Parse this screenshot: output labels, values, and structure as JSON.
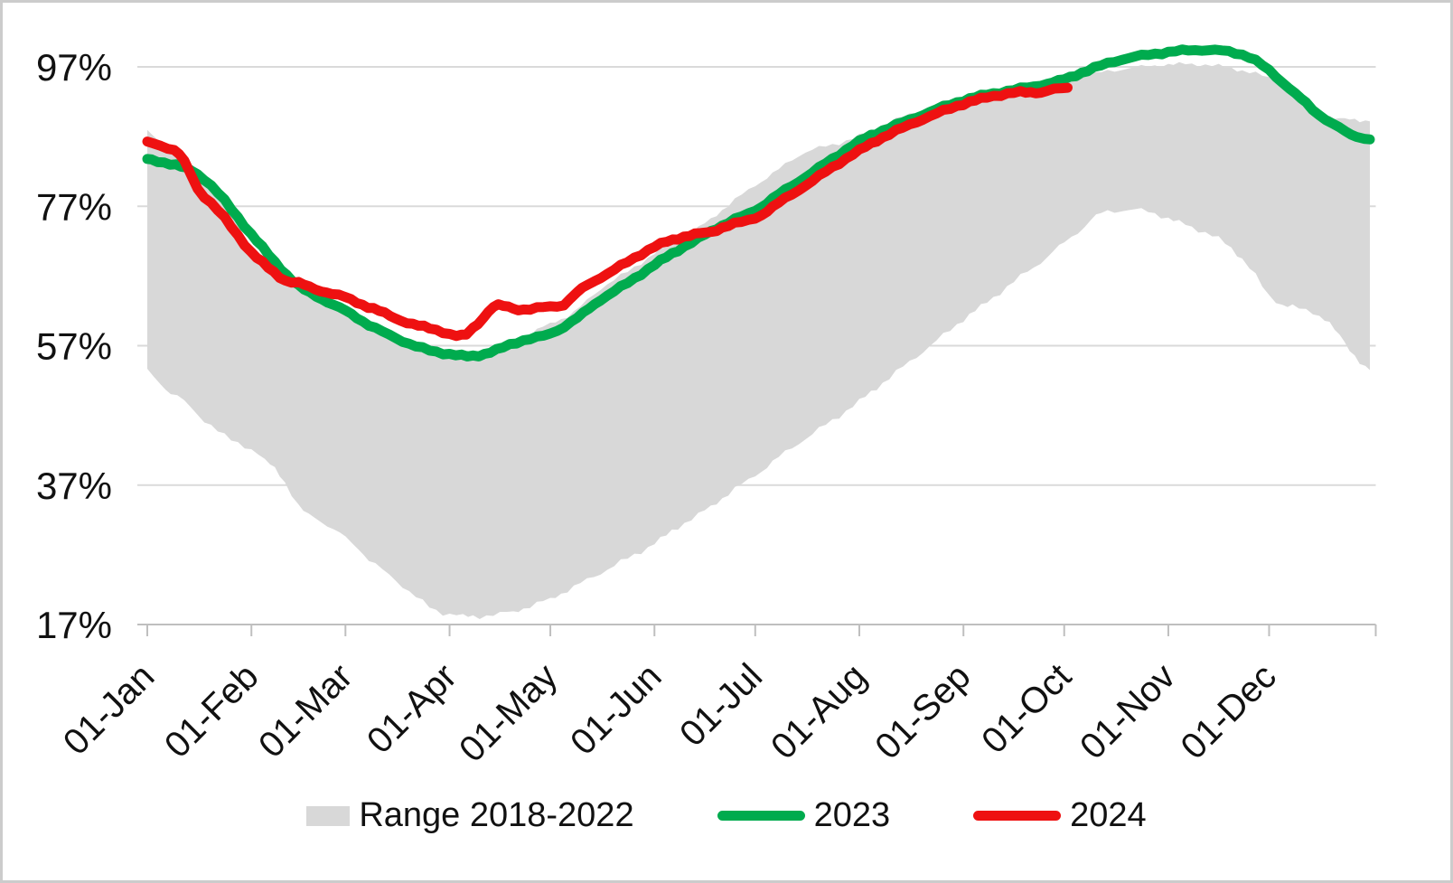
{
  "chart_data": {
    "type": "line",
    "title": "",
    "unit": "percent",
    "grid": true,
    "legend_position": "bottom",
    "x_axis": {
      "tick_labels": [
        "01-Jan",
        "01-Feb",
        "01-Mar",
        "01-Apr",
        "01-May",
        "01-Jun",
        "01-Jul",
        "01-Aug",
        "01-Sep",
        "01-Oct",
        "01-Nov",
        "01-Dec"
      ],
      "tick_days": [
        0,
        31,
        59,
        90,
        120,
        151,
        181,
        212,
        243,
        273,
        304,
        334
      ],
      "range_days": [
        0,
        365
      ]
    },
    "y_axis": {
      "tick_labels": [
        "17%",
        "37%",
        "57%",
        "77%",
        "97%"
      ],
      "ticks": [
        17,
        37,
        57,
        77,
        97
      ],
      "min": 17,
      "max": 100.5
    },
    "band": {
      "name": "Range 2018-2022",
      "color": "#D8D8D8",
      "points": [
        [
          0,
          53.5,
          87.8
        ],
        [
          4,
          51.5,
          86.2
        ],
        [
          7,
          50.3,
          85.3
        ],
        [
          11,
          49.0,
          83.3
        ],
        [
          15,
          47.1,
          82.1
        ],
        [
          19,
          45.6,
          79.8
        ],
        [
          23,
          44.0,
          77.3
        ],
        [
          27,
          43.1,
          74.3
        ],
        [
          31,
          42.1,
          71.4
        ],
        [
          35,
          40.5,
          69.5
        ],
        [
          38,
          39.4,
          67.8
        ],
        [
          41,
          37.5,
          66.3
        ],
        [
          45,
          33.9,
          64.9
        ],
        [
          48,
          32.8,
          63.9
        ],
        [
          52,
          31.7,
          62.9
        ],
        [
          59,
          29.5,
          61.4
        ],
        [
          63,
          27.8,
          60.2
        ],
        [
          66,
          26.4,
          59.3
        ],
        [
          70,
          24.8,
          58.3
        ],
        [
          74,
          23.3,
          57.5
        ],
        [
          78,
          21.8,
          56.8
        ],
        [
          82,
          20.2,
          56.2
        ],
        [
          86,
          19.0,
          55.8
        ],
        [
          90,
          18.5,
          55.3
        ],
        [
          94,
          18.2,
          55.1
        ],
        [
          97,
          18.1,
          55.0
        ],
        [
          101,
          18.3,
          55.2
        ],
        [
          105,
          18.5,
          55.9
        ],
        [
          109,
          18.9,
          57.2
        ],
        [
          112,
          19.3,
          58.0
        ],
        [
          116,
          20.0,
          59.2
        ],
        [
          120,
          20.7,
          60.2
        ],
        [
          127,
          22.4,
          61.8
        ],
        [
          135,
          24.4,
          65.2
        ],
        [
          143,
          26.5,
          67.6
        ],
        [
          151,
          28.6,
          70.2
        ],
        [
          158,
          31.0,
          72.0
        ],
        [
          166,
          33.3,
          74.5
        ],
        [
          173,
          35.8,
          77.2
        ],
        [
          181,
          38.4,
          80.0
        ],
        [
          188,
          41.0,
          82.3
        ],
        [
          196,
          43.7,
          84.8
        ],
        [
          204,
          46.3,
          85.8
        ],
        [
          212,
          49.0,
          87.1
        ],
        [
          219,
          51.7,
          88.6
        ],
        [
          227,
          54.7,
          90.2
        ],
        [
          235,
          57.7,
          91.6
        ],
        [
          243,
          60.8,
          92.8
        ],
        [
          250,
          63.2,
          93.3
        ],
        [
          258,
          66.2,
          93.6
        ],
        [
          266,
          69.0,
          94.2
        ],
        [
          273,
          71.8,
          95.0
        ],
        [
          277,
          73.3,
          95.5
        ],
        [
          281,
          75.0,
          95.9
        ],
        [
          284,
          76.0,
          96.2
        ],
        [
          288,
          76.3,
          96.5
        ],
        [
          292,
          76.5,
          96.8
        ],
        [
          296,
          76.4,
          97.0
        ],
        [
          300,
          76.0,
          97.2
        ],
        [
          304,
          75.2,
          97.3
        ],
        [
          311,
          74.0,
          97.4
        ],
        [
          319,
          72.3,
          97.1
        ],
        [
          326,
          69.5,
          96.5
        ],
        [
          330,
          67.0,
          96.0
        ],
        [
          334,
          64.1,
          95.4
        ],
        [
          338,
          63.0,
          94.6
        ],
        [
          341,
          62.6,
          93.8
        ],
        [
          345,
          62.0,
          92.2
        ],
        [
          349,
          61.4,
          90.6
        ],
        [
          352,
          60.2,
          89.8
        ],
        [
          355,
          58.3,
          89.4
        ],
        [
          358,
          56.4,
          89.6
        ],
        [
          361,
          54.8,
          89.4
        ],
        [
          364,
          53.5,
          89.2
        ]
      ]
    },
    "series": [
      {
        "name": "2023",
        "color": "#00AB4E",
        "points": [
          [
            0,
            83.7
          ],
          [
            5,
            83.3
          ],
          [
            10,
            82.7
          ],
          [
            13,
            82.1
          ],
          [
            15,
            81.6
          ],
          [
            19,
            80.0
          ],
          [
            23,
            77.8
          ],
          [
            27,
            75.4
          ],
          [
            31,
            73.0
          ],
          [
            38,
            69.0
          ],
          [
            45,
            65.6
          ],
          [
            52,
            63.7
          ],
          [
            59,
            62.0
          ],
          [
            66,
            60.0
          ],
          [
            74,
            58.1
          ],
          [
            82,
            56.6
          ],
          [
            90,
            55.8
          ],
          [
            97,
            55.5
          ],
          [
            104,
            56.4
          ],
          [
            112,
            57.8
          ],
          [
            120,
            58.7
          ],
          [
            128,
            61.0
          ],
          [
            135,
            63.6
          ],
          [
            143,
            66.0
          ],
          [
            151,
            68.6
          ],
          [
            158,
            70.7
          ],
          [
            166,
            72.9
          ],
          [
            173,
            74.7
          ],
          [
            181,
            76.4
          ],
          [
            188,
            78.7
          ],
          [
            196,
            81.2
          ],
          [
            204,
            83.8
          ],
          [
            212,
            86.3
          ],
          [
            219,
            87.9
          ],
          [
            227,
            89.4
          ],
          [
            235,
            90.9
          ],
          [
            243,
            92.2
          ],
          [
            250,
            93.0
          ],
          [
            258,
            93.7
          ],
          [
            266,
            94.4
          ],
          [
            273,
            95.2
          ],
          [
            280,
            96.5
          ],
          [
            288,
            97.8
          ],
          [
            296,
            98.6
          ],
          [
            304,
            99.1
          ],
          [
            310,
            99.4
          ],
          [
            316,
            99.4
          ],
          [
            322,
            99.2
          ],
          [
            328,
            98.4
          ],
          [
            334,
            96.5
          ],
          [
            340,
            93.9
          ],
          [
            345,
            91.8
          ],
          [
            349,
            90.1
          ],
          [
            355,
            88.2
          ],
          [
            360,
            87.0
          ],
          [
            364,
            86.6
          ]
        ]
      },
      {
        "name": "2024",
        "color": "#EE1111",
        "points": [
          [
            0,
            86.2
          ],
          [
            4,
            85.7
          ],
          [
            8,
            85.0
          ],
          [
            11,
            83.5
          ],
          [
            15,
            79.5
          ],
          [
            19,
            77.5
          ],
          [
            23,
            75.3
          ],
          [
            27,
            72.8
          ],
          [
            31,
            70.4
          ],
          [
            36,
            68.2
          ],
          [
            41,
            66.4
          ],
          [
            45,
            66.0
          ],
          [
            50,
            65.1
          ],
          [
            55,
            64.5
          ],
          [
            59,
            63.9
          ],
          [
            64,
            62.9
          ],
          [
            69,
            62.0
          ],
          [
            74,
            60.9
          ],
          [
            79,
            60.1
          ],
          [
            84,
            59.5
          ],
          [
            88,
            59.0
          ],
          [
            92,
            58.4
          ],
          [
            95,
            58.6
          ],
          [
            97,
            59.5
          ],
          [
            100,
            61.0
          ],
          [
            103,
            62.6
          ],
          [
            106,
            62.7
          ],
          [
            109,
            62.3
          ],
          [
            112,
            62.2
          ],
          [
            116,
            62.4
          ],
          [
            120,
            62.6
          ],
          [
            124,
            62.9
          ],
          [
            128,
            64.7
          ],
          [
            135,
            66.8
          ],
          [
            143,
            69.0
          ],
          [
            151,
            71.2
          ],
          [
            158,
            72.4
          ],
          [
            163,
            73.0
          ],
          [
            168,
            73.3
          ],
          [
            173,
            74.3
          ],
          [
            181,
            75.3
          ],
          [
            188,
            77.5
          ],
          [
            196,
            80.0
          ],
          [
            204,
            82.6
          ],
          [
            212,
            85.0
          ],
          [
            219,
            86.9
          ],
          [
            227,
            88.7
          ],
          [
            235,
            90.3
          ],
          [
            243,
            91.7
          ],
          [
            250,
            92.6
          ],
          [
            258,
            93.3
          ],
          [
            263,
            93.3
          ],
          [
            266,
            93.4
          ],
          [
            270,
            93.8
          ],
          [
            274,
            94.0
          ]
        ]
      }
    ],
    "colors": {
      "band": "#D8D8D8",
      "green_2023": "#00AB4E",
      "red_2024": "#EE1111",
      "gridline": "#DADADA",
      "axis": "#BFBFBF",
      "text": "#111111"
    }
  },
  "legend": {
    "range_label": "Range 2018-2022",
    "label_2023": "2023",
    "label_2024": "2024"
  }
}
